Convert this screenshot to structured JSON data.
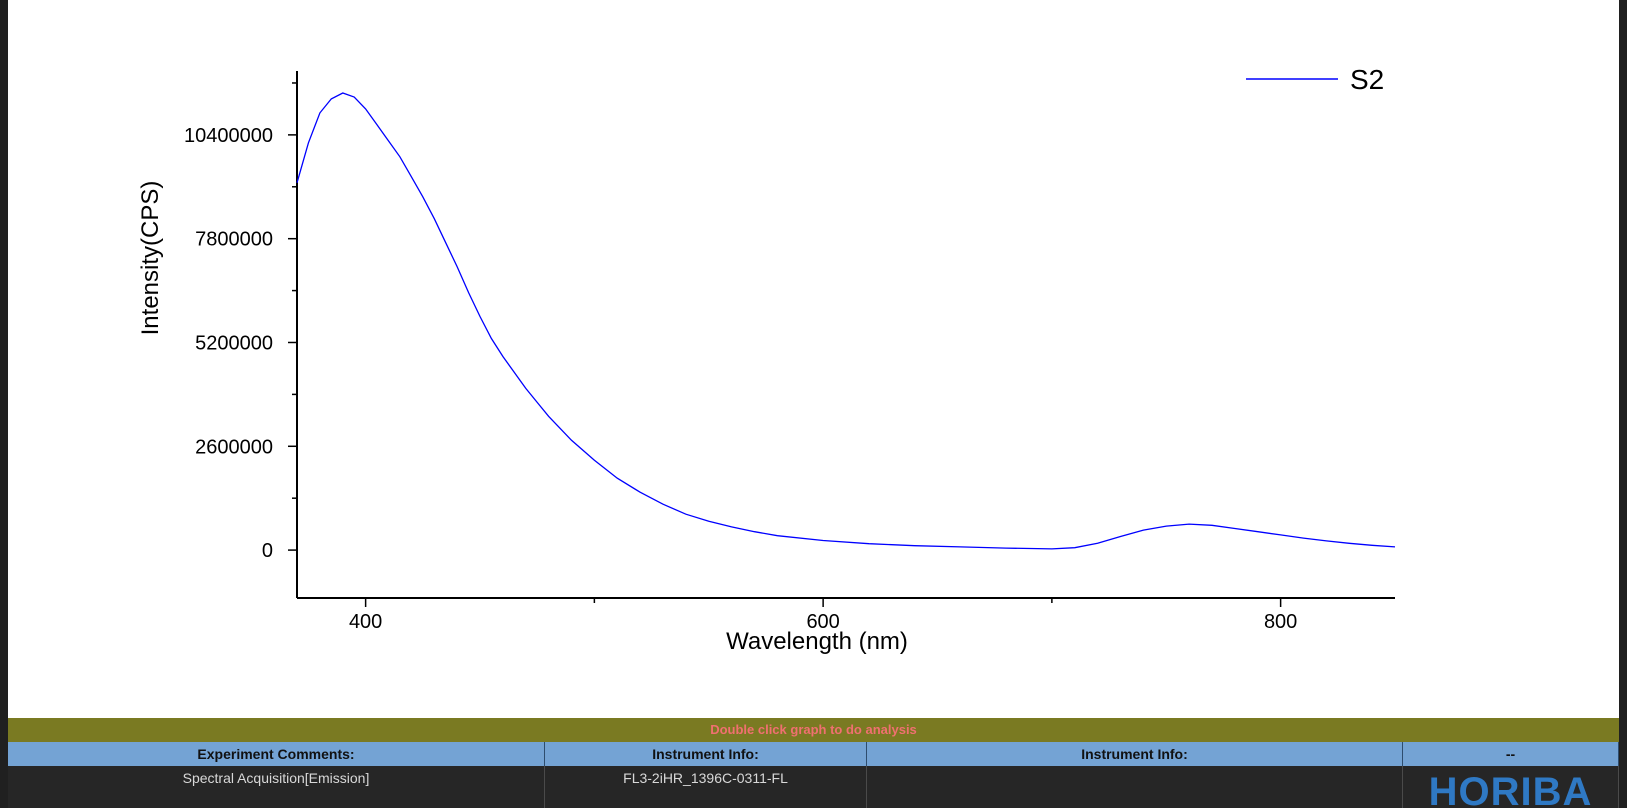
{
  "chart_data": {
    "type": "line",
    "xlabel": "Wavelength (nm)",
    "ylabel": "Intensity(CPS)",
    "xlim": [
      370,
      850
    ],
    "ylim": [
      -1200000,
      12000000
    ],
    "x_ticks": [
      400,
      600,
      800
    ],
    "y_ticks": [
      0,
      2600000,
      5200000,
      7800000,
      10400000
    ],
    "legend_position": "top-right",
    "grid": false,
    "series": [
      {
        "name": "S2",
        "color": "#0000ff",
        "points": [
          [
            370,
            9200000
          ],
          [
            375,
            10200000
          ],
          [
            380,
            10950000
          ],
          [
            385,
            11300000
          ],
          [
            390,
            11450000
          ],
          [
            395,
            11350000
          ],
          [
            400,
            11050000
          ],
          [
            405,
            10650000
          ],
          [
            410,
            10250000
          ],
          [
            415,
            9850000
          ],
          [
            420,
            9350000
          ],
          [
            425,
            8850000
          ],
          [
            430,
            8300000
          ],
          [
            435,
            7700000
          ],
          [
            440,
            7100000
          ],
          [
            445,
            6450000
          ],
          [
            450,
            5850000
          ],
          [
            455,
            5300000
          ],
          [
            460,
            4850000
          ],
          [
            465,
            4450000
          ],
          [
            470,
            4050000
          ],
          [
            475,
            3700000
          ],
          [
            480,
            3350000
          ],
          [
            490,
            2750000
          ],
          [
            500,
            2250000
          ],
          [
            510,
            1800000
          ],
          [
            520,
            1450000
          ],
          [
            530,
            1150000
          ],
          [
            540,
            900000
          ],
          [
            550,
            720000
          ],
          [
            560,
            580000
          ],
          [
            570,
            460000
          ],
          [
            580,
            360000
          ],
          [
            600,
            240000
          ],
          [
            620,
            160000
          ],
          [
            640,
            110000
          ],
          [
            660,
            80000
          ],
          [
            680,
            50000
          ],
          [
            700,
            30000
          ],
          [
            710,
            60000
          ],
          [
            720,
            170000
          ],
          [
            730,
            340000
          ],
          [
            740,
            500000
          ],
          [
            750,
            600000
          ],
          [
            760,
            650000
          ],
          [
            770,
            620000
          ],
          [
            780,
            540000
          ],
          [
            790,
            460000
          ],
          [
            800,
            380000
          ],
          [
            810,
            300000
          ],
          [
            820,
            230000
          ],
          [
            830,
            170000
          ],
          [
            840,
            120000
          ],
          [
            850,
            80000
          ]
        ]
      }
    ]
  },
  "status_bar": {
    "text": "Double click graph to do analysis",
    "text_color": "#f07070",
    "background": "#7a7a22"
  },
  "info_table": {
    "headers": [
      "Experiment Comments:",
      "Instrument Info:",
      "Instrument Info:",
      "--"
    ],
    "values": [
      "Spectral Acquisition[Emission]",
      "FL3-2iHR_1396C-0311-FL",
      ""
    ],
    "logo_text": "HORIBA",
    "header_color": "#74a3d4",
    "logo_color": "#2f79c4"
  }
}
